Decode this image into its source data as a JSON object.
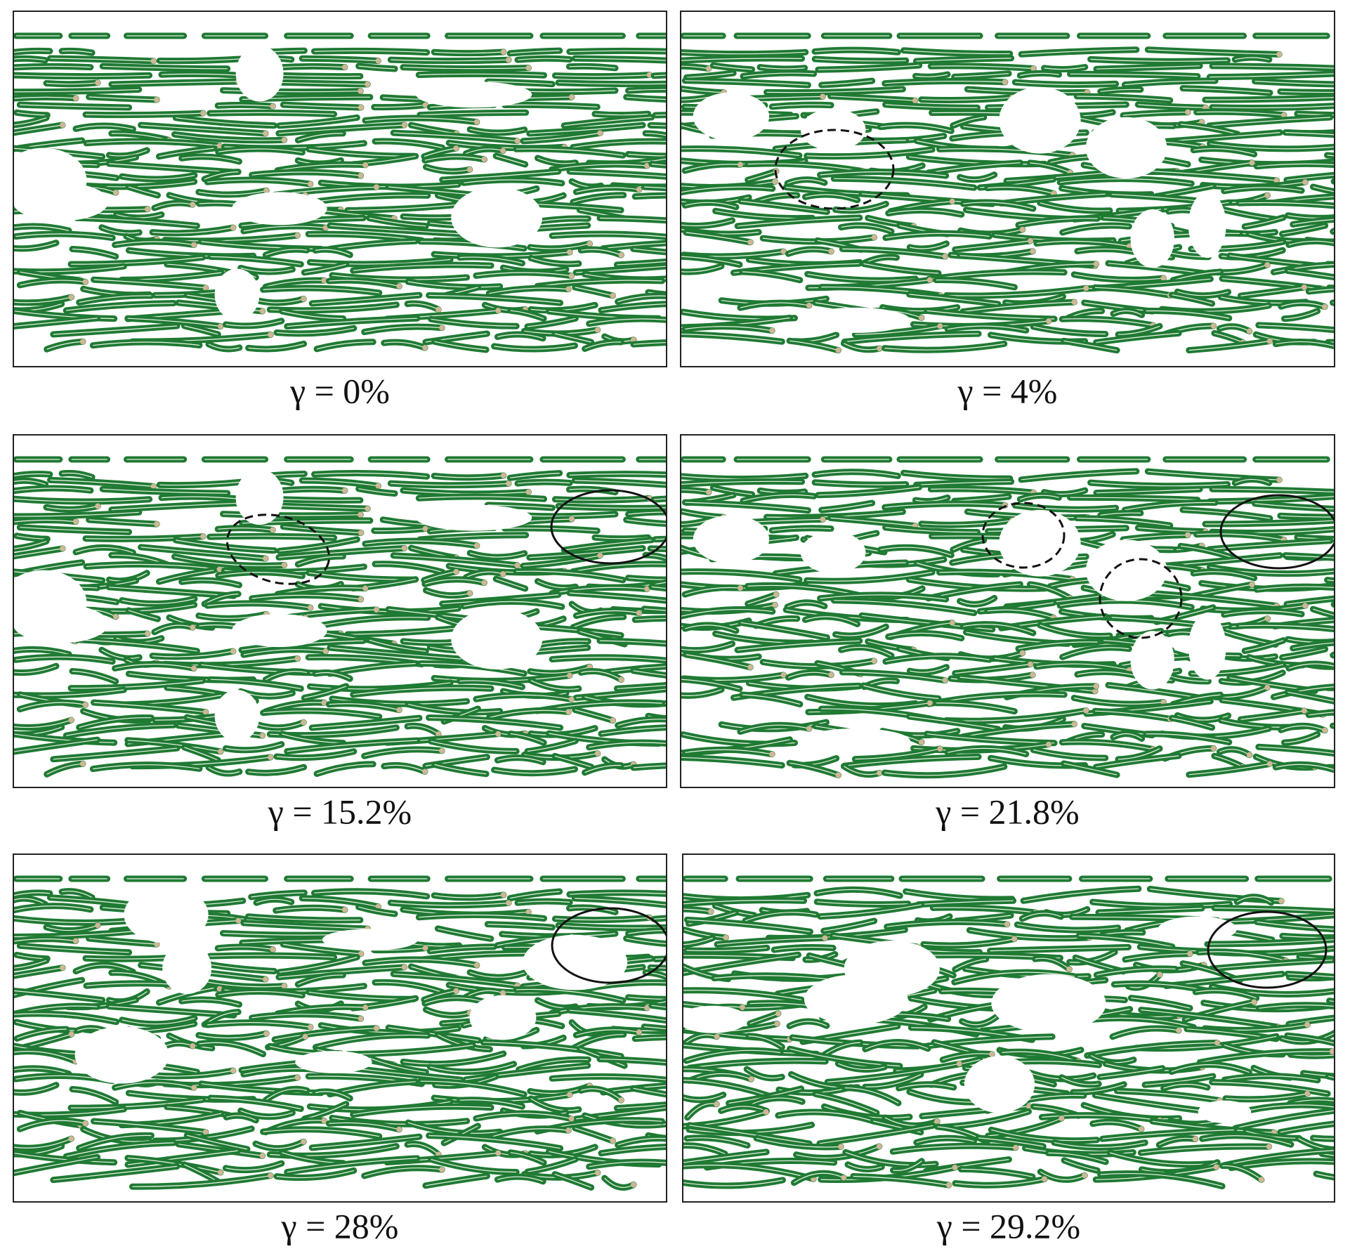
{
  "panels": [
    {
      "label": "γ = 0%"
    },
    {
      "label": "γ = 4%"
    },
    {
      "label": "γ = 15.2%"
    },
    {
      "label": "γ = 21.8%"
    },
    {
      "label": "γ = 28%"
    },
    {
      "label": "γ = 29.2%"
    }
  ]
}
